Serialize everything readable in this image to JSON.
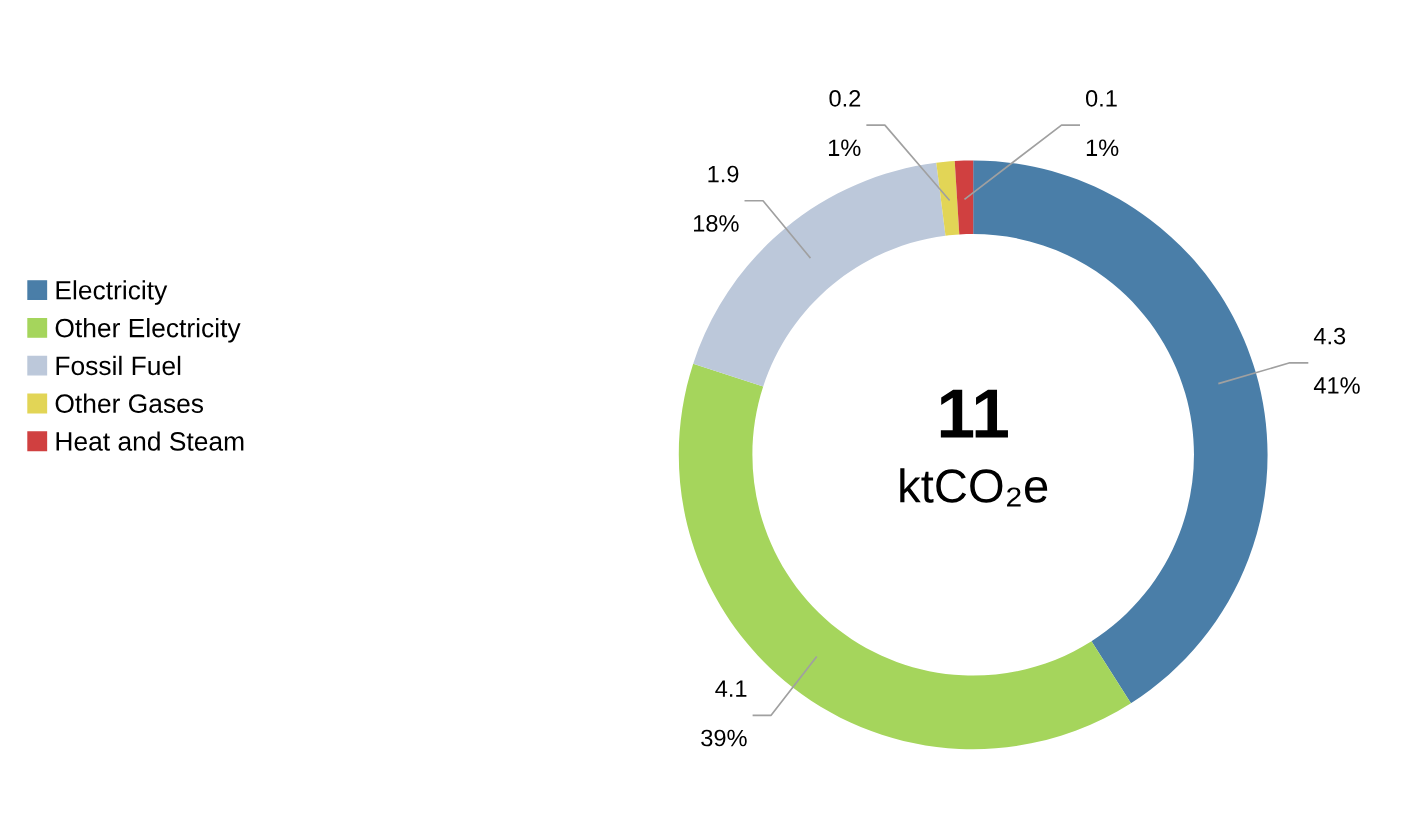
{
  "chart_data": {
    "type": "donut",
    "categories": [
      "Electricity",
      "Other Electricity",
      "Fossil Fuel",
      "Other Gases",
      "Heat and Steam"
    ],
    "values": [
      41,
      39,
      18,
      1,
      1
    ],
    "colors": [
      "#4a7ea8",
      "#a5d55c",
      "#bcc8da",
      "#e2d556",
      "#d04040"
    ],
    "value_labels": [
      "4.3\n41%",
      "4.1\n39%",
      "1.9\n18%",
      "0.2\n1%",
      "0.1\n1%"
    ],
    "annotations": [
      "11",
      "ktCO₂e"
    ],
    "legend": "left"
  }
}
